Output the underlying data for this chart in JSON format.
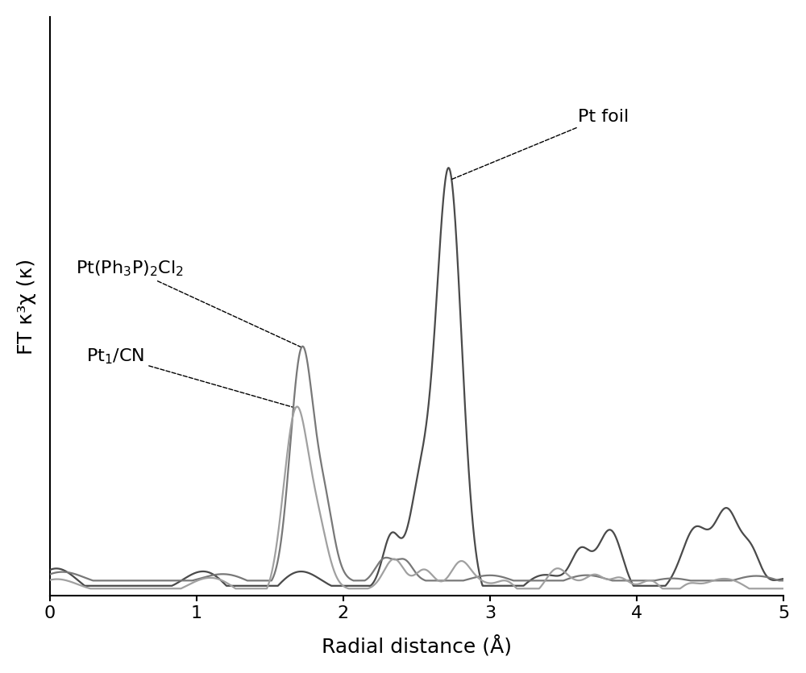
{
  "xlabel": "Radial distance (Å)",
  "ylabel": "FT κ³χ (κ)",
  "xlim": [
    0,
    5
  ],
  "ylim": [
    0,
    1.45
  ],
  "xticks": [
    0,
    1,
    2,
    3,
    4,
    5
  ],
  "background_color": "#ffffff",
  "color_ptfoil": "#4a4a4a",
  "color_ptph3": "#787878",
  "color_pt1cn": "#a0a0a0",
  "annotation_ptfoil": "Pt foil",
  "annotation_ptph3": "Pt(Ph$_3$P)$_2$Cl$_2$",
  "annotation_pt1cn": "Pt$_1$/CN"
}
